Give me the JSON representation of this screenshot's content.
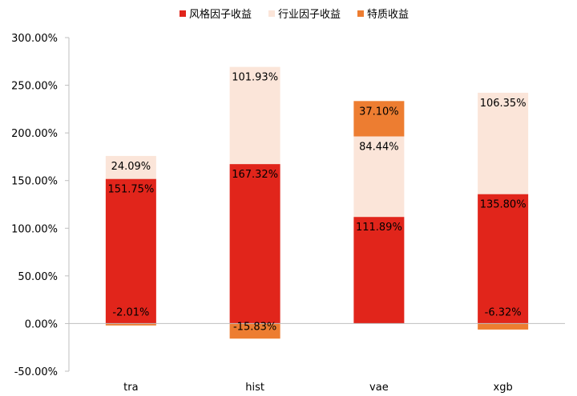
{
  "chart_data": {
    "type": "bar",
    "stacked": true,
    "categories": [
      "tra",
      "hist",
      "vae",
      "xgb"
    ],
    "series": [
      {
        "name": "风格因子收益",
        "color": "#e1251b",
        "values": [
          151.75,
          167.32,
          111.89,
          135.8
        ],
        "labels": [
          "151.75%",
          "167.32%",
          "111.89%",
          "135.80%"
        ]
      },
      {
        "name": "行业因子收益",
        "color": "#fbe5d9",
        "values": [
          24.09,
          101.93,
          84.44,
          106.35
        ],
        "labels": [
          "24.09%",
          "101.93%",
          "84.44%",
          "106.35%"
        ]
      },
      {
        "name": "特质收益",
        "color": "#ed7d31",
        "values": [
          -2.01,
          -15.83,
          37.1,
          -6.32
        ],
        "labels": [
          "-2.01%",
          "-15.83%",
          "37.10%",
          "-6.32%"
        ]
      }
    ],
    "ylim": [
      -50,
      300
    ],
    "yticks": [
      -50,
      0,
      50,
      100,
      150,
      200,
      250,
      300
    ],
    "ytick_labels": [
      "-50.00%",
      "0.00%",
      "50.00%",
      "100.00%",
      "150.00%",
      "200.00%",
      "250.00%",
      "300.00%"
    ],
    "legend_position": "top-center",
    "grid": false,
    "title": "",
    "xlabel": "",
    "ylabel": ""
  }
}
